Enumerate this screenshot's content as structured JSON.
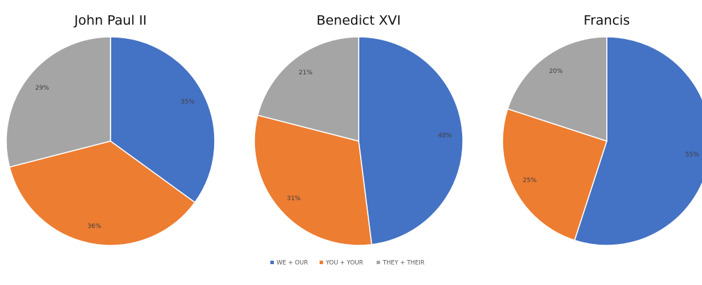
{
  "chart_data": [
    {
      "type": "pie",
      "title": "John Paul II",
      "values": [
        35,
        36,
        29
      ],
      "value_labels": [
        "35%",
        "36%",
        "29%"
      ]
    },
    {
      "type": "pie",
      "title": "Benedict XVI",
      "values": [
        48,
        31,
        21
      ],
      "value_labels": [
        "48%",
        "31%",
        "21%"
      ]
    },
    {
      "type": "pie",
      "title": "Francis",
      "values": [
        55,
        25,
        20
      ],
      "value_labels": [
        "55%",
        "25%",
        "20%"
      ]
    }
  ],
  "legend": {
    "labels": [
      "WE + OUR",
      "YOU + YOUR",
      "THEY + THEIR"
    ],
    "colors": [
      "#4472c4",
      "#ed7d31",
      "#a5a5a5"
    ]
  }
}
